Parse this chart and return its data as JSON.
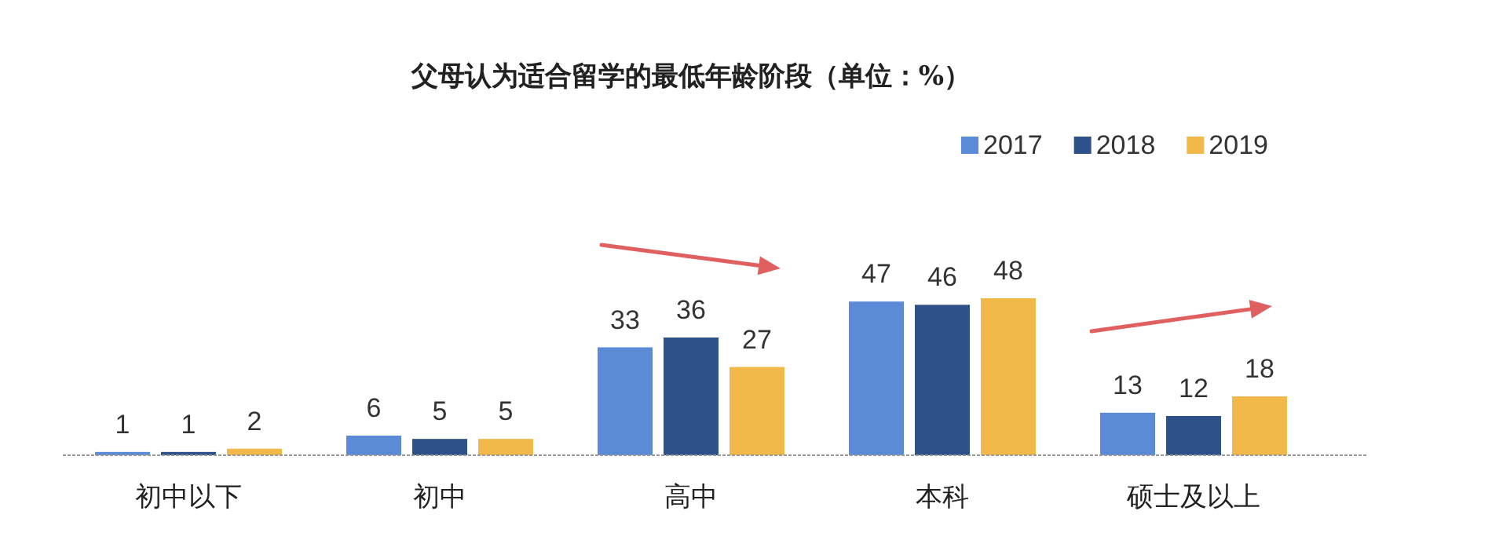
{
  "chart_data": {
    "type": "bar",
    "title": "父母认为适合留学的最低年龄阶段（单位：%）",
    "categories": [
      "初中以下",
      "初中",
      "高中",
      "本科",
      "硕士及以上"
    ],
    "series": [
      {
        "name": "2017",
        "color": "#5b8bd6",
        "values": [
          1,
          6,
          33,
          47,
          13
        ]
      },
      {
        "name": "2018",
        "color": "#2f5189",
        "values": [
          1,
          5,
          36,
          46,
          12
        ]
      },
      {
        "name": "2019",
        "color": "#f0b94a",
        "values": [
          2,
          5,
          27,
          48,
          18
        ]
      }
    ],
    "data_labels": true,
    "legend": "top right"
  }
}
